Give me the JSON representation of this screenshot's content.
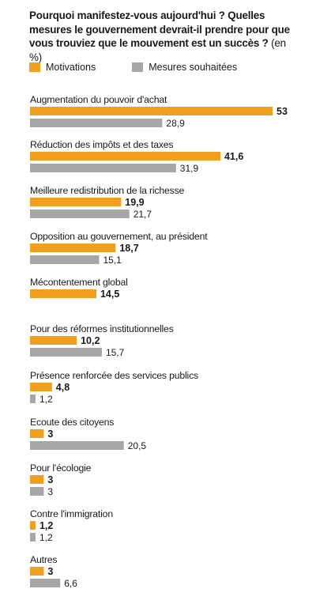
{
  "chart_data": {
    "type": "bar",
    "orientation": "horizontal",
    "title": "Pourquoi manifestez-vous aujourd'hui ? Quelles mesures le gouvernement devrait-il prendre pour que vous trouviez que le mouvement est un succès ?",
    "unit": "(en %)",
    "categories": [
      "Augmentation du pouvoir d'achat",
      "Réduction des impôts et des taxes",
      "Meilleure redistribution de la richesse",
      "Opposition au gouvernement, au président",
      "Mécontentement global",
      "Pour des réformes institutionnelles",
      "Présence renforcée des services publics",
      "Ecoute des citoyens",
      "Pour l'écologie",
      "Contre l'immigration",
      "Autres"
    ],
    "series": [
      {
        "name": "Motivations",
        "color": "#f0a01e",
        "values": [
          53,
          41.6,
          19.9,
          18.7,
          14.5,
          10.2,
          4.8,
          3,
          3,
          1.2,
          3
        ],
        "labels": [
          "53",
          "41,6",
          "19,9",
          "18,7",
          "14,5",
          "10,2",
          "4,8",
          "3",
          "3",
          "1,2",
          "3"
        ]
      },
      {
        "name": "Mesures souhaitées",
        "color": "#a6a6a6",
        "values": [
          28.9,
          31.9,
          21.7,
          15.1,
          null,
          15.7,
          1.2,
          20.5,
          3,
          1.2,
          6.6
        ],
        "labels": [
          "28,9",
          "31,9",
          "21,7",
          "15,1",
          "",
          "15,7",
          "1,2",
          "20,5",
          "3",
          "1,2",
          "6,6"
        ]
      }
    ],
    "xlim": [
      0,
      53
    ],
    "legend_position": "top-left",
    "grid": false
  }
}
